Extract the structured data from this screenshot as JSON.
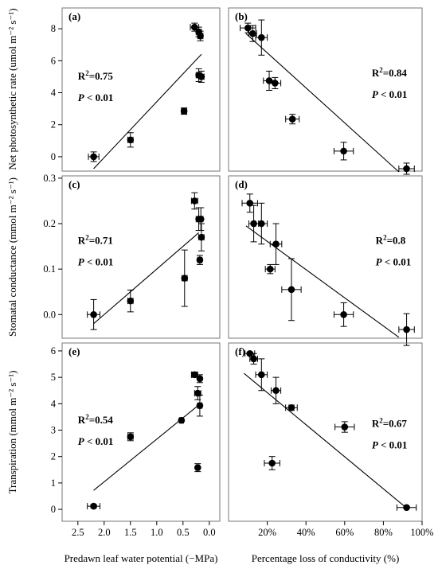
{
  "chart_data": [
    {
      "panel": "(a)",
      "type": "scatter",
      "ylabel": "Net photosynthetic rate (umol m⁻² s⁻¹)",
      "xlabel": "",
      "xlim": [
        2.8,
        -0.2
      ],
      "ylim": [
        -0.9,
        9.3
      ],
      "xticks": [
        2.5,
        2.0,
        1.5,
        1.0,
        0.5,
        0.0
      ],
      "xticklabels": [
        "2.5",
        "2.0",
        "1.5",
        "1.0",
        "0.5",
        "0.0"
      ],
      "yticks": [
        0,
        2,
        4,
        6,
        8
      ],
      "yticklabels": [
        "0",
        "2",
        "4",
        "6",
        "8"
      ],
      "points": [
        {
          "x": 2.2,
          "y": 0.0,
          "xerr": 0.1,
          "yerr": 0.3
        },
        {
          "x": 1.5,
          "y": 1.05,
          "xerr": 0.05,
          "yerr": 0.45
        },
        {
          "x": 0.48,
          "y": 2.85,
          "xerr": 0.05,
          "yerr": 0.2
        },
        {
          "x": 0.28,
          "y": 8.1,
          "xerr": 0.08,
          "yerr": 0.25
        },
        {
          "x": 0.2,
          "y": 7.8,
          "xerr": 0.05,
          "yerr": 0.3
        },
        {
          "x": 0.17,
          "y": 7.55,
          "xerr": 0.05,
          "yerr": 0.3
        },
        {
          "x": 0.2,
          "y": 5.1,
          "xerr": 0.05,
          "yerr": 0.4
        },
        {
          "x": 0.15,
          "y": 5.0,
          "xerr": 0.05,
          "yerr": 0.35
        }
      ],
      "fit": {
        "x": [
          2.2,
          0.15
        ],
        "y": [
          -0.75,
          6.4
        ]
      },
      "r2": "R²=0.75",
      "p": "P < 0.01"
    },
    {
      "panel": "(b)",
      "type": "scatter",
      "ylabel": "",
      "xlabel": "",
      "xlim": [
        0.0,
        1.0
      ],
      "ylim": [
        -0.9,
        9.3
      ],
      "xticks": [
        0.2,
        0.4,
        0.6,
        0.8,
        1.0
      ],
      "xticklabels": [
        "20%",
        "40%",
        "60%",
        "80%",
        "100%"
      ],
      "yticks": [],
      "yticklabels": [],
      "points": [
        {
          "x": 0.1,
          "y": 8.05,
          "xerr": 0.04,
          "yerr": 0.3
        },
        {
          "x": 0.125,
          "y": 7.7,
          "xerr": 0.02,
          "yerr": 0.5
        },
        {
          "x": 0.17,
          "y": 7.45,
          "xerr": 0.03,
          "yerr": 1.1
        },
        {
          "x": 0.21,
          "y": 4.75,
          "xerr": 0.03,
          "yerr": 0.6
        },
        {
          "x": 0.24,
          "y": 4.6,
          "xerr": 0.03,
          "yerr": 0.35
        },
        {
          "x": 0.33,
          "y": 2.35,
          "xerr": 0.035,
          "yerr": 0.3
        },
        {
          "x": 0.595,
          "y": 0.35,
          "xerr": 0.05,
          "yerr": 0.55
        },
        {
          "x": 0.92,
          "y": -0.75,
          "xerr": 0.04,
          "yerr": 0.35
        }
      ],
      "fit": {
        "x": [
          0.09,
          0.88
        ],
        "y": [
          7.7,
          -0.95
        ]
      },
      "r2": "R²=0.84",
      "p": "P < 0.01"
    },
    {
      "panel": "(c)",
      "type": "scatter",
      "ylabel": "Stomatal conductance (mmol m⁻² s⁻¹)",
      "xlabel": "",
      "xlim": [
        2.8,
        -0.2
      ],
      "ylim": [
        -0.052,
        0.305
      ],
      "xticks": [
        2.5,
        2.0,
        1.5,
        1.0,
        0.5,
        0.0
      ],
      "xticklabels": [
        "2.5",
        "2.0",
        "1.5",
        "1.0",
        "0.5",
        "0.0"
      ],
      "yticks": [
        0.0,
        0.1,
        0.2,
        0.3
      ],
      "yticklabels": [
        "0.0",
        "0.1",
        "0.2",
        "0.3"
      ],
      "points": [
        {
          "x": 2.2,
          "y": 0.0,
          "xerr": 0.12,
          "yerr": 0.033
        },
        {
          "x": 1.5,
          "y": 0.03,
          "xerr": 0.05,
          "yerr": 0.024
        },
        {
          "x": 0.47,
          "y": 0.08,
          "xerr": 0.05,
          "yerr": 0.062
        },
        {
          "x": 0.28,
          "y": 0.25,
          "xerr": 0.06,
          "yerr": 0.018
        },
        {
          "x": 0.2,
          "y": 0.21,
          "xerr": 0.05,
          "yerr": 0.025
        },
        {
          "x": 0.16,
          "y": 0.21,
          "xerr": 0.04,
          "yerr": 0.025
        },
        {
          "x": 0.15,
          "y": 0.17,
          "xerr": 0.05,
          "yerr": 0.03
        },
        {
          "x": 0.18,
          "y": 0.12,
          "xerr": 0.04,
          "yerr": 0.01
        }
      ],
      "fit": {
        "x": [
          2.2,
          0.2
        ],
        "y": [
          -0.02,
          0.18
        ]
      },
      "r2": "R²=0.71",
      "p": "P < 0.01"
    },
    {
      "panel": "(d)",
      "type": "scatter",
      "ylabel": "",
      "xlabel": "",
      "xlim": [
        0.0,
        1.0
      ],
      "ylim": [
        -0.052,
        0.305
      ],
      "xticks": [
        0.2,
        0.4,
        0.6,
        0.8,
        1.0
      ],
      "xticklabels": [
        "20%",
        "40%",
        "60%",
        "80%",
        "100%"
      ],
      "yticks": [],
      "yticklabels": [],
      "points": [
        {
          "x": 0.11,
          "y": 0.245,
          "xerr": 0.04,
          "yerr": 0.02
        },
        {
          "x": 0.13,
          "y": 0.2,
          "xerr": 0.025,
          "yerr": 0.04
        },
        {
          "x": 0.17,
          "y": 0.2,
          "xerr": 0.03,
          "yerr": 0.045
        },
        {
          "x": 0.245,
          "y": 0.155,
          "xerr": 0.03,
          "yerr": 0.045
        },
        {
          "x": 0.215,
          "y": 0.1,
          "xerr": 0.025,
          "yerr": 0.01
        },
        {
          "x": 0.325,
          "y": 0.055,
          "xerr": 0.05,
          "yerr": 0.068
        },
        {
          "x": 0.595,
          "y": 0.0,
          "xerr": 0.05,
          "yerr": 0.026
        },
        {
          "x": 0.92,
          "y": -0.033,
          "xerr": 0.04,
          "yerr": 0.035
        }
      ],
      "fit": {
        "x": [
          0.09,
          0.88
        ],
        "y": [
          0.195,
          -0.05
        ]
      },
      "r2": "R²=0.8",
      "p": "P < 0.01"
    },
    {
      "panel": "(e)",
      "type": "scatter",
      "ylabel": "Transpiration (mmol m⁻² s⁻¹)",
      "xlabel": "Predawn leaf water potential (−MPa)",
      "xlim": [
        2.8,
        -0.2
      ],
      "ylim": [
        -0.45,
        6.3
      ],
      "xticks": [
        2.5,
        2.0,
        1.5,
        1.0,
        0.5,
        0.0
      ],
      "xticklabels": [
        "2.5",
        "2.0",
        "1.5",
        "1.0",
        "0.5",
        "0.0"
      ],
      "yticks": [
        0,
        1,
        2,
        3,
        4,
        5,
        6
      ],
      "yticklabels": [
        "0",
        "1",
        "2",
        "3",
        "4",
        "5",
        "6"
      ],
      "points": [
        {
          "x": 2.2,
          "y": 0.12,
          "xerr": 0.12,
          "yerr": 0.06
        },
        {
          "x": 1.5,
          "y": 2.75,
          "xerr": 0.05,
          "yerr": 0.15
        },
        {
          "x": 0.53,
          "y": 3.37,
          "xerr": 0.04,
          "yerr": 0.05
        },
        {
          "x": 0.28,
          "y": 5.1,
          "xerr": 0.06,
          "yerr": 0.1
        },
        {
          "x": 0.18,
          "y": 4.95,
          "xerr": 0.03,
          "yerr": 0.15
        },
        {
          "x": 0.22,
          "y": 4.4,
          "xerr": 0.06,
          "yerr": 0.25
        },
        {
          "x": 0.18,
          "y": 3.93,
          "xerr": 0.04,
          "yerr": 0.4
        },
        {
          "x": 0.22,
          "y": 1.58,
          "xerr": 0.03,
          "yerr": 0.15
        }
      ],
      "fit": {
        "x": [
          2.2,
          0.2
        ],
        "y": [
          0.72,
          3.95
        ]
      },
      "r2": "R²=0.54",
      "p": "P < 0.01"
    },
    {
      "panel": "(f)",
      "type": "scatter",
      "ylabel": "",
      "xlabel": "Percentage loss of conductivity (%)",
      "xlim": [
        0.0,
        1.0
      ],
      "ylim": [
        -0.45,
        6.3
      ],
      "xticks": [
        0.2,
        0.4,
        0.6,
        0.8,
        1.0
      ],
      "xticklabels": [
        "20%",
        "40%",
        "60%",
        "80%",
        "100%"
      ],
      "yticks": [],
      "yticklabels": [],
      "points": [
        {
          "x": 0.11,
          "y": 5.9,
          "xerr": 0.025,
          "yerr": 0.05
        },
        {
          "x": 0.13,
          "y": 5.7,
          "xerr": 0.02,
          "yerr": 0.2
        },
        {
          "x": 0.17,
          "y": 5.1,
          "xerr": 0.03,
          "yerr": 0.6
        },
        {
          "x": 0.245,
          "y": 4.5,
          "xerr": 0.025,
          "yerr": 0.5
        },
        {
          "x": 0.325,
          "y": 3.85,
          "xerr": 0.03,
          "yerr": 0.1
        },
        {
          "x": 0.6,
          "y": 3.12,
          "xerr": 0.05,
          "yerr": 0.2
        },
        {
          "x": 0.225,
          "y": 1.75,
          "xerr": 0.04,
          "yerr": 0.25
        },
        {
          "x": 0.92,
          "y": 0.07,
          "xerr": 0.05,
          "yerr": 0.02
        }
      ],
      "fit": {
        "x": [
          0.08,
          0.92
        ],
        "y": [
          5.15,
          0.05
        ]
      },
      "r2": "R²=0.67",
      "p": "P < 0.01"
    }
  ]
}
